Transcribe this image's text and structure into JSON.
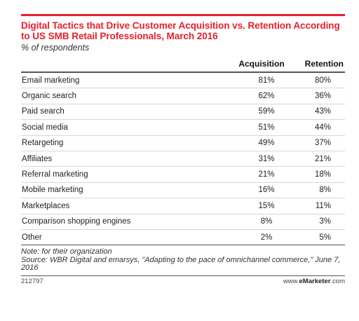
{
  "chart_data": {
    "type": "table",
    "title": "Digital Tactics that Drive Customer Acquisition vs. Retention According to US SMB Retail Professionals, March 2016",
    "subtitle": "% of respondents",
    "columns": [
      "",
      "Acquisition",
      "Retention"
    ],
    "rows": [
      {
        "label": "Email marketing",
        "acquisition": "81%",
        "retention": "80%"
      },
      {
        "label": "Organic search",
        "acquisition": "62%",
        "retention": "36%"
      },
      {
        "label": "Paid search",
        "acquisition": "59%",
        "retention": "43%"
      },
      {
        "label": "Social media",
        "acquisition": "51%",
        "retention": "44%"
      },
      {
        "label": "Retargeting",
        "acquisition": "49%",
        "retention": "37%"
      },
      {
        "label": "Affiliates",
        "acquisition": "31%",
        "retention": "21%"
      },
      {
        "label": "Referral marketing",
        "acquisition": "21%",
        "retention": "18%"
      },
      {
        "label": "Mobile marketing",
        "acquisition": "16%",
        "retention": "8%"
      },
      {
        "label": "Marketplaces",
        "acquisition": "15%",
        "retention": "11%"
      },
      {
        "label": "Comparison shopping engines",
        "acquisition": "8%",
        "retention": "3%"
      },
      {
        "label": "Other",
        "acquisition": "2%",
        "retention": "5%"
      }
    ]
  },
  "notes": {
    "note": "Note: for their organization",
    "source": "Source: WBR Digital and emarsys, \"Adapting to the pace of omnichannel commerce,\" June 7, 2016"
  },
  "footer": {
    "id": "212797",
    "brand_prefix": "www.",
    "brand_bold": "eMarketer",
    "brand_suffix": ".com"
  },
  "colors": {
    "accent": "#e4222e"
  }
}
